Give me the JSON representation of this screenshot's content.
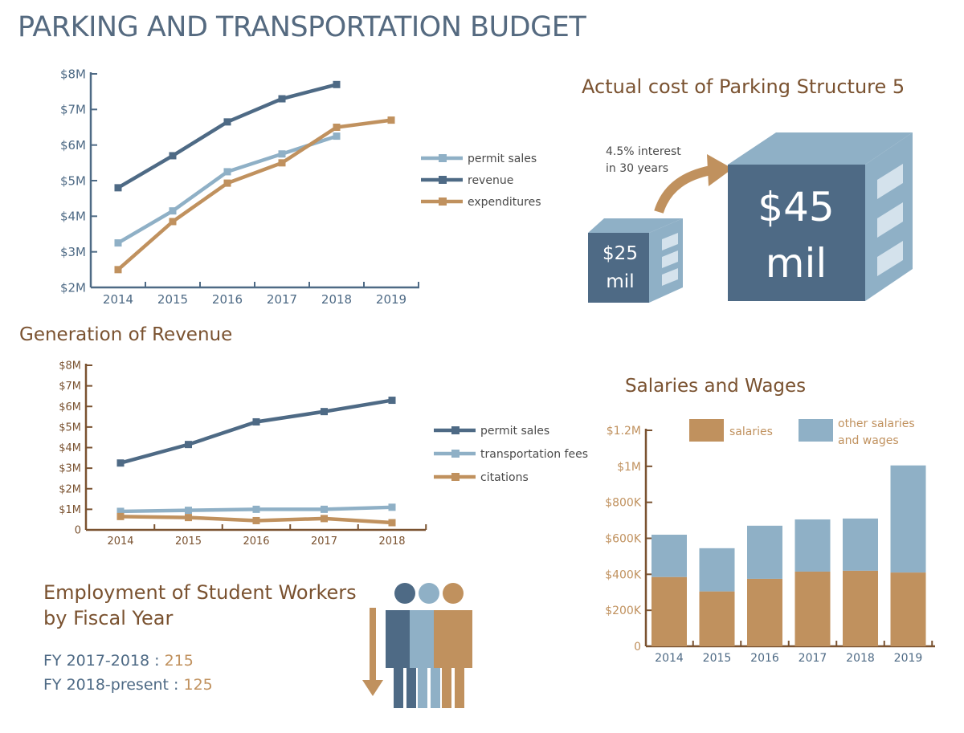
{
  "title": "PARKING AND TRANSPORTATION BUDGET",
  "colors": {
    "dark_slate": "#4e6a85",
    "light_blue": "#8fb0c6",
    "tan": "#c0915e",
    "brown": "#7a5230"
  },
  "structure": {
    "title": "Actual cost of Parking Structure 5",
    "interest_line1": "4.5% interest",
    "interest_line2": "in 30 years",
    "small_amount": "$25",
    "small_unit": "mil",
    "big_amount": "$45",
    "big_unit": "mil"
  },
  "revenue_title": "Generation of Revenue",
  "salaries_title": "Salaries and Wages",
  "employment": {
    "title_line1": "Employment of Student Workers",
    "title_line2": "by Fiscal Year",
    "rows": [
      {
        "label": "FY 2017-2018 : ",
        "value": "215"
      },
      {
        "label": "FY 2018-present : ",
        "value": "125"
      }
    ]
  },
  "chart_data": [
    {
      "type": "line",
      "title": "",
      "x": [
        "2014",
        "2015",
        "2016",
        "2017",
        "2018",
        "2019"
      ],
      "y_ticks": [
        "$2M",
        "$3M",
        "$4M",
        "$5M",
        "$6M",
        "$7M",
        "$8M"
      ],
      "ylim": [
        2,
        8
      ],
      "y_unit": "millions of dollars",
      "series": [
        {
          "name": "permit sales",
          "color": "#8fb0c6",
          "values": [
            3.25,
            4.15,
            5.25,
            5.75,
            6.25,
            null
          ]
        },
        {
          "name": "revenue",
          "color": "#4e6a85",
          "values": [
            4.8,
            5.7,
            6.65,
            7.3,
            7.7,
            null
          ]
        },
        {
          "name": "expenditures",
          "color": "#c0915e",
          "values": [
            2.5,
            3.85,
            4.93,
            5.5,
            6.5,
            6.7
          ]
        }
      ],
      "legend": "right"
    },
    {
      "type": "line",
      "title": "Generation of Revenue",
      "x": [
        "2014",
        "2015",
        "2016",
        "2017",
        "2018"
      ],
      "y_ticks": [
        "0",
        "$1M",
        "$2M",
        "$3M",
        "$4M",
        "$5M",
        "$6M",
        "$7M",
        "$8M"
      ],
      "ylim": [
        0,
        8
      ],
      "y_unit": "millions of dollars",
      "series": [
        {
          "name": "permit sales",
          "color": "#4e6a85",
          "values": [
            3.25,
            4.15,
            5.25,
            5.75,
            6.3
          ]
        },
        {
          "name": "transportation fees",
          "color": "#8fb0c6",
          "values": [
            0.9,
            0.95,
            1.0,
            1.0,
            1.1
          ]
        },
        {
          "name": "citations",
          "color": "#c0915e",
          "values": [
            0.65,
            0.6,
            0.45,
            0.55,
            0.35
          ]
        }
      ],
      "legend": "right"
    },
    {
      "type": "bar",
      "stacked": true,
      "title": "Salaries and Wages",
      "categories": [
        "2014",
        "2015",
        "2016",
        "2017",
        "2018",
        "2019"
      ],
      "y_ticks": [
        "0",
        "$200K",
        "$400K",
        "$600K",
        "$800K",
        "$1M",
        "$1.2M"
      ],
      "ylim": [
        0,
        1200
      ],
      "y_unit": "thousands of dollars",
      "series": [
        {
          "name": "salaries",
          "color": "#c0915e",
          "values": [
            385,
            305,
            375,
            415,
            420,
            410
          ]
        },
        {
          "name": "other salaries and wages",
          "color": "#8fb0c6",
          "values": [
            235,
            240,
            295,
            290,
            290,
            595
          ]
        }
      ],
      "legend": "top"
    }
  ]
}
